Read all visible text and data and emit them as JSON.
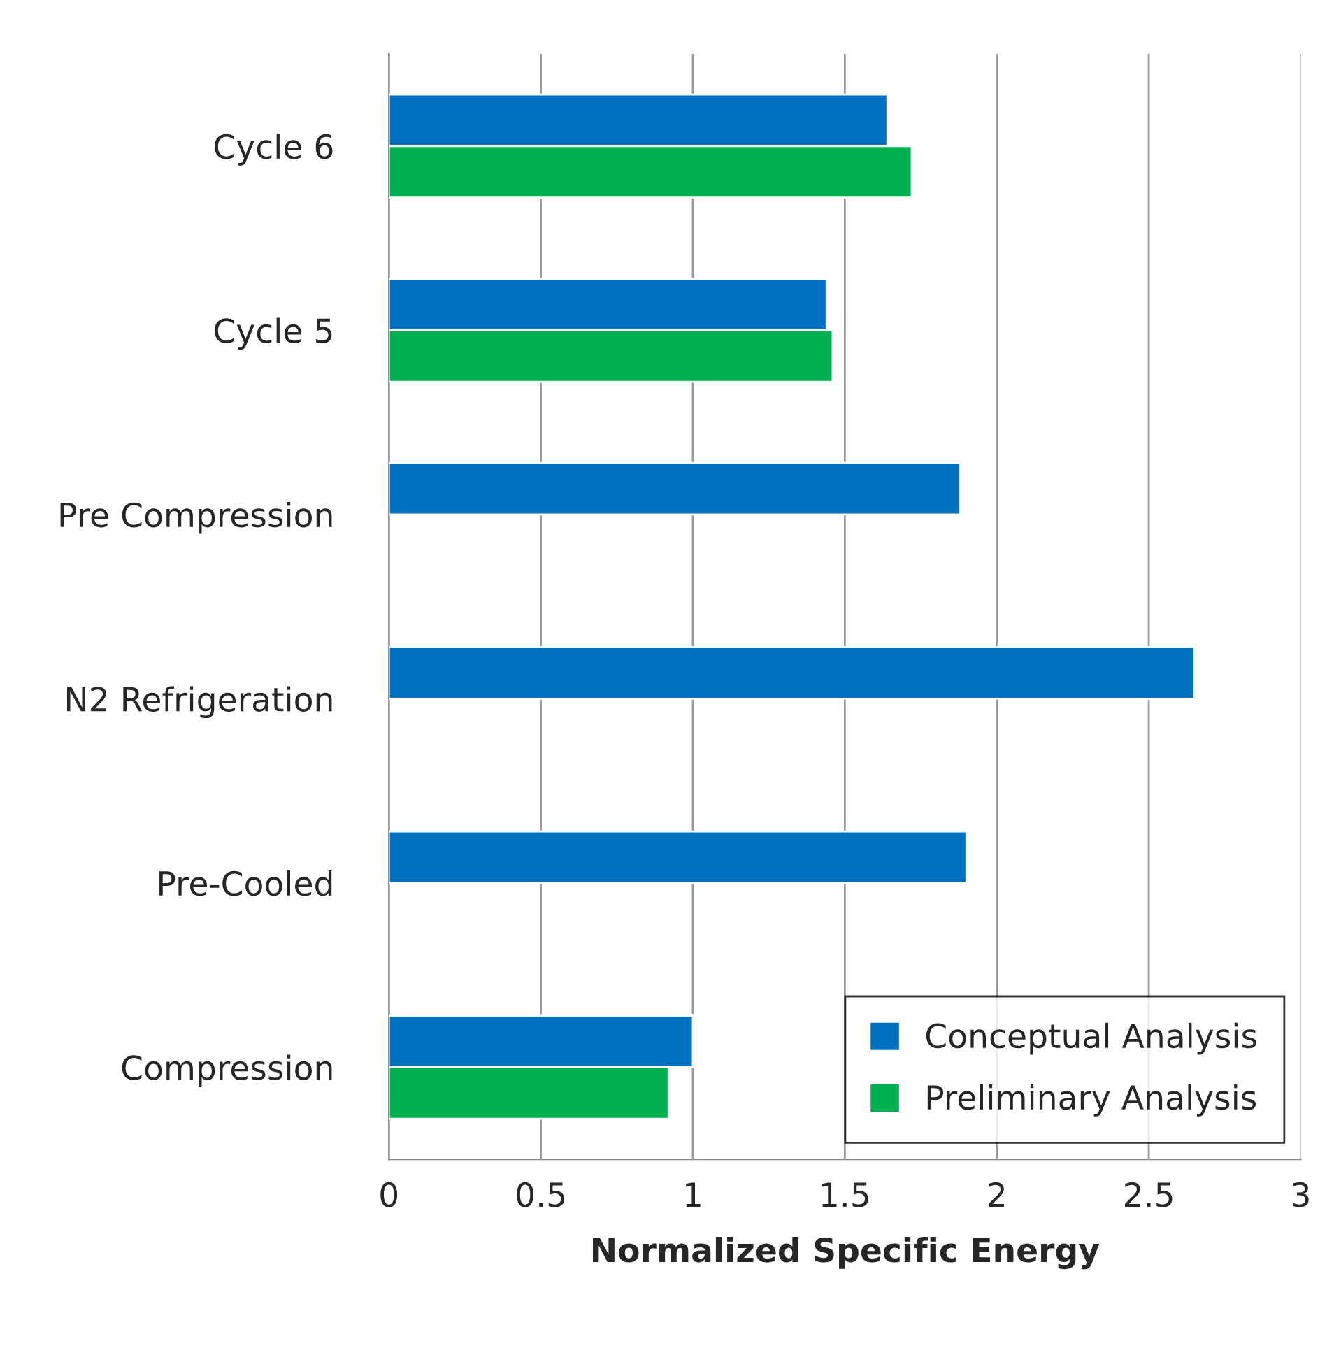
{
  "chart_data": {
    "type": "bar",
    "orientation": "horizontal",
    "xlabel": "Normalized Specific Energy",
    "categories": [
      "Cycle 6",
      "Cycle 5",
      "Pre Compression",
      "N2 Refrigeration",
      "Pre-Cooled",
      "Compression"
    ],
    "series": [
      {
        "name": "Conceptual Analysis",
        "color": "#0070c0",
        "values": [
          1.64,
          1.44,
          1.88,
          2.65,
          1.9,
          1.0
        ]
      },
      {
        "name": "Preliminary Analysis",
        "color": "#00b050",
        "values": [
          1.72,
          1.46,
          null,
          null,
          null,
          0.92
        ]
      }
    ],
    "xlim": [
      0,
      3
    ],
    "xticks": [
      0,
      0.5,
      1,
      1.5,
      2,
      2.5,
      3
    ],
    "grid": "x",
    "legend": "bottom right"
  }
}
